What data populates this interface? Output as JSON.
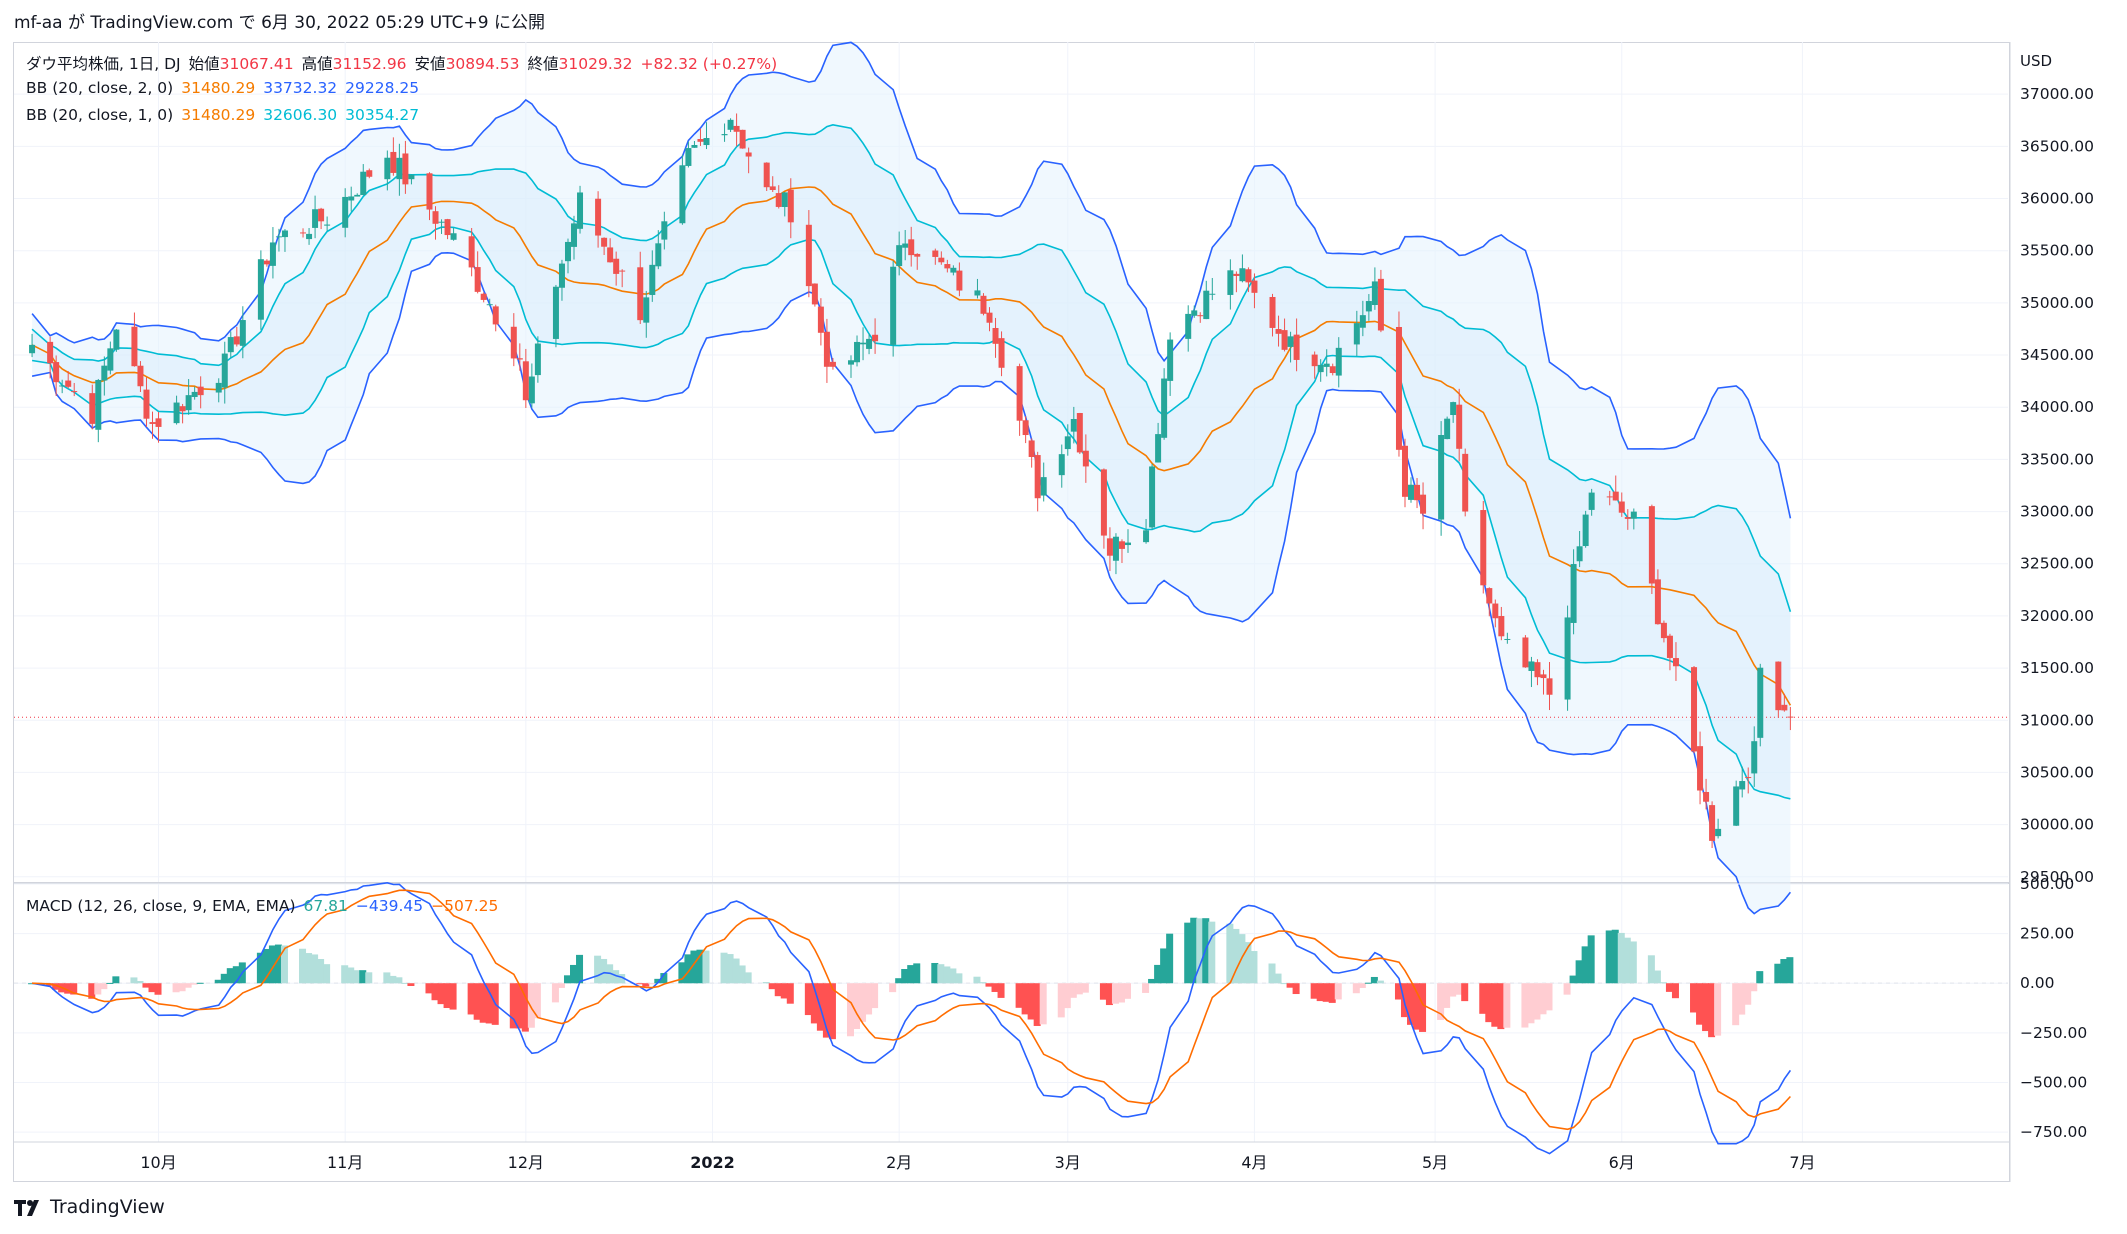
{
  "header": {
    "text": "mf-aa が TradingView.com で 6月 30, 2022 05:29 UTC+9 に公開"
  },
  "legend": {
    "symbol": "ダウ平均株価, 1日, DJ",
    "open_label": "始値",
    "open": "31067.41",
    "high_label": "高値",
    "high": "31152.96",
    "low_label": "安値",
    "low": "30894.53",
    "close_label": "終値",
    "close": "31029.32",
    "change": "+82.32 (+0.27%)",
    "bb2_label": "BB (20, close, 2, 0)",
    "bb2_basis": "31480.29",
    "bb2_upper": "33732.32",
    "bb2_lower": "29228.25",
    "bb1_label": "BB (20, close, 1, 0)",
    "bb1_basis": "31480.29",
    "bb1_upper": "32606.30",
    "bb1_lower": "30354.27",
    "macd_label": "MACD (12, 26, close, 9, EMA, EMA)",
    "macd_hist": "67.81",
    "macd_line": "−439.45",
    "macd_signal": "−507.25"
  },
  "footer": {
    "brand": "TradingView"
  },
  "colors": {
    "up": "#26a69a",
    "down": "#ef5350",
    "bb2_band": "#2962ff",
    "bb1_band": "#00bcd4",
    "basis": "#f57c00",
    "macd": "#2962ff",
    "signal": "#ff6d00",
    "fill": "#e3f2fd"
  },
  "chart_data": [
    {
      "type": "candlestick",
      "title": "ダウ平均株価, 1日, DJ",
      "currency_label": "USD",
      "y_ticks": [
        "37000.00",
        "36500.00",
        "36000.00",
        "35500.00",
        "35000.00",
        "34500.00",
        "34000.00",
        "33500.00",
        "33000.00",
        "32500.00",
        "32000.00",
        "31500.00",
        "31000.00",
        "30500.00",
        "30000.00",
        "29500.00"
      ],
      "ylim": [
        29450,
        37500
      ],
      "x_tick_labels": [
        "10月",
        "11月",
        "12月",
        "2022",
        "2月",
        "3月",
        "4月",
        "5月",
        "6月",
        "7月"
      ],
      "last_close": 31029.32,
      "path": [
        {
          "date": "2021-09-10",
          "close": 34600
        },
        {
          "date": "2021-09-20",
          "close": 33950
        },
        {
          "date": "2021-09-24",
          "close": 34800
        },
        {
          "date": "2021-09-30",
          "close": 33840
        },
        {
          "date": "2021-10-04",
          "close": 34000
        },
        {
          "date": "2021-10-12",
          "close": 34400
        },
        {
          "date": "2021-10-20",
          "close": 35600
        },
        {
          "date": "2021-10-29",
          "close": 35820
        },
        {
          "date": "2021-11-08",
          "close": 36430
        },
        {
          "date": "2021-11-19",
          "close": 35600
        },
        {
          "date": "2021-11-26",
          "close": 34900
        },
        {
          "date": "2021-11-30",
          "close": 34480
        },
        {
          "date": "2021-12-01",
          "close": 34020
        },
        {
          "date": "2021-12-06",
          "close": 35200
        },
        {
          "date": "2021-12-10",
          "close": 35970
        },
        {
          "date": "2021-12-20",
          "close": 34930
        },
        {
          "date": "2021-12-28",
          "close": 36390
        },
        {
          "date": "2022-01-04",
          "close": 36800
        },
        {
          "date": "2022-01-10",
          "close": 36060
        },
        {
          "date": "2022-01-14",
          "close": 35900
        },
        {
          "date": "2022-01-21",
          "close": 34260
        },
        {
          "date": "2022-01-28",
          "close": 34730
        },
        {
          "date": "2022-02-02",
          "close": 35630
        },
        {
          "date": "2022-02-10",
          "close": 35240
        },
        {
          "date": "2022-02-16",
          "close": 34930
        },
        {
          "date": "2022-02-24",
          "close": 33220
        },
        {
          "date": "2022-03-02",
          "close": 33890
        },
        {
          "date": "2022-03-08",
          "close": 32630
        },
        {
          "date": "2022-03-14",
          "close": 32950
        },
        {
          "date": "2022-03-18",
          "close": 34750
        },
        {
          "date": "2022-03-29",
          "close": 35300
        },
        {
          "date": "2022-04-07",
          "close": 34580
        },
        {
          "date": "2022-04-14",
          "close": 34450
        },
        {
          "date": "2022-04-21",
          "close": 35100
        },
        {
          "date": "2022-04-26",
          "close": 33240
        },
        {
          "date": "2022-04-29",
          "close": 32980
        },
        {
          "date": "2022-05-04",
          "close": 34060
        },
        {
          "date": "2022-05-06",
          "close": 32900
        },
        {
          "date": "2022-05-12",
          "close": 31730
        },
        {
          "date": "2022-05-20",
          "close": 31260
        },
        {
          "date": "2022-05-27",
          "close": 33210
        },
        {
          "date": "2022-06-03",
          "close": 32900
        },
        {
          "date": "2022-06-10",
          "close": 31390
        },
        {
          "date": "2022-06-16",
          "close": 29930
        },
        {
          "date": "2022-06-23",
          "close": 30680
        },
        {
          "date": "2022-06-24",
          "close": 31500
        },
        {
          "date": "2022-06-29",
          "close": 31029
        }
      ]
    },
    {
      "type": "bar",
      "title": "MACD (12, 26, close, 9, EMA, EMA)",
      "y_ticks": [
        "500.00",
        "250.00",
        "0.00",
        "−250.00",
        "−500.00",
        "−750.00"
      ],
      "ylim": [
        -800,
        500
      ],
      "last": {
        "histogram": 67.81,
        "macd": -439.45,
        "signal": -507.25
      }
    }
  ]
}
